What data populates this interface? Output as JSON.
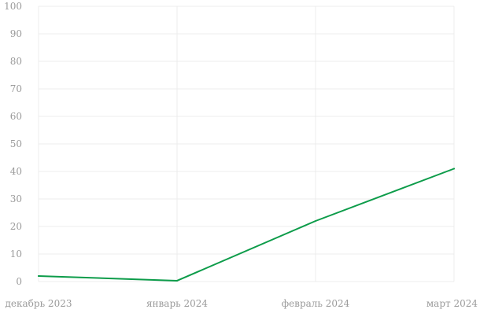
{
  "chart_data": {
    "type": "line",
    "title": "",
    "xlabel": "",
    "ylabel": "",
    "categories": [
      "декабрь 2023",
      "январь 2024",
      "февраль 2024",
      "март 2024"
    ],
    "series": [
      {
        "values": [
          2,
          0.3,
          22,
          41
        ],
        "color": "#0d9c4a"
      }
    ],
    "ylim": [
      0,
      100
    ],
    "yticks": [
      "0",
      "10",
      "20",
      "30",
      "40",
      "50",
      "60",
      "70",
      "80",
      "90",
      "100"
    ],
    "grid": true,
    "legend": "none"
  }
}
